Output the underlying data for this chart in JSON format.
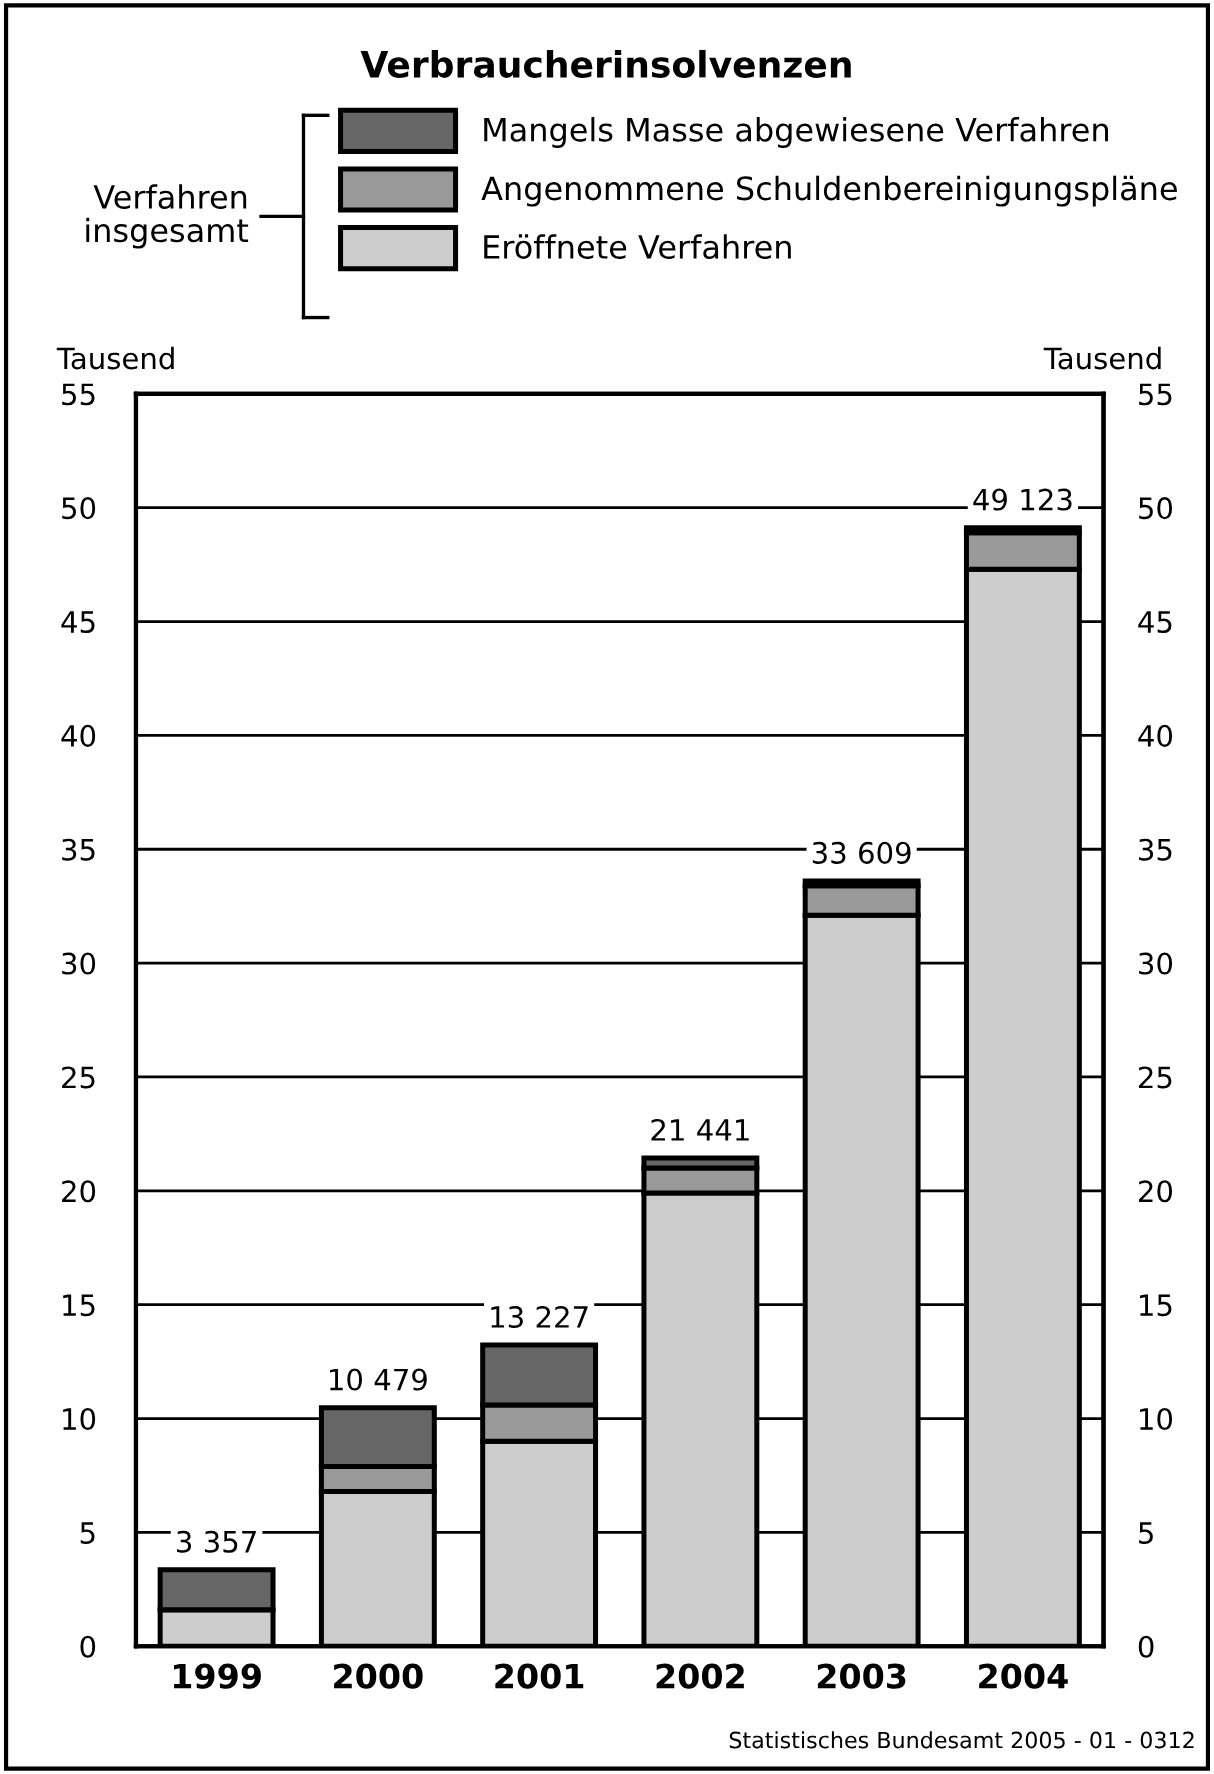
{
  "chart_data": {
    "type": "bar",
    "title": "Verbraucherinsolvenzen",
    "legend_title": "Verfahren insgesamt",
    "ylabel": "Tausend",
    "y2label": "Tausend",
    "categories": [
      "1999",
      "2000",
      "2001",
      "2002",
      "2003",
      "2004"
    ],
    "stacked": true,
    "series": [
      {
        "name": "Eröffnete Verfahren",
        "color": "#cccccc",
        "values": [
          1.6,
          6.8,
          9.0,
          19.9,
          32.1,
          47.3
        ]
      },
      {
        "name": "Angenommene Schuldenbereinigungspläne",
        "color": "#999999",
        "values": [
          null,
          1.1,
          1.6,
          1.1,
          1.3,
          1.6
        ]
      },
      {
        "name": "Mangels Masse abgewiesene Verfahren",
        "color": "#666666",
        "values": [
          1.757,
          2.579,
          2.627,
          0.441,
          0.209,
          0.223
        ]
      }
    ],
    "totals": [
      "3 357",
      "10 479",
      "13 227",
      "21 441",
      "33 609",
      "49 123"
    ],
    "ylim": [
      0,
      55
    ],
    "yticks": [
      0,
      5,
      10,
      15,
      20,
      25,
      30,
      35,
      40,
      45,
      50,
      55
    ],
    "y2lim": [
      0,
      55
    ],
    "y2ticks": [
      0,
      5,
      10,
      15,
      20,
      25,
      30,
      35,
      40,
      45,
      50,
      55
    ],
    "grid": "y",
    "legend": "top",
    "annotations": [
      "Statistisches Bundesamt 2005 - 01 - 0312"
    ]
  }
}
